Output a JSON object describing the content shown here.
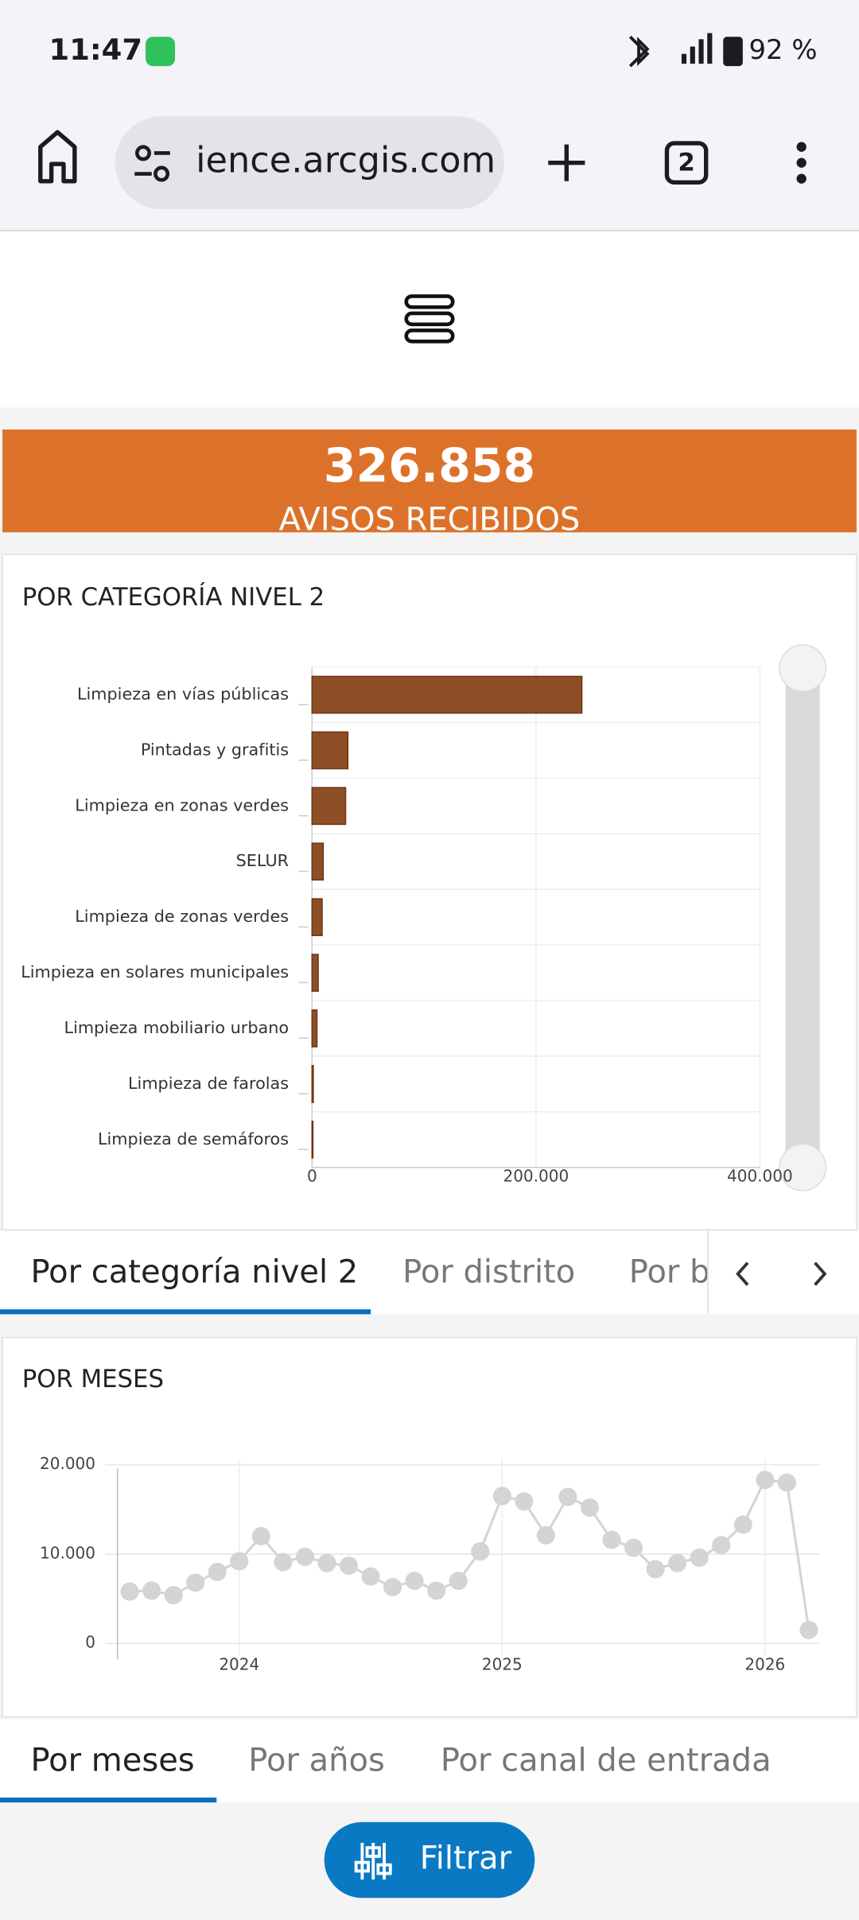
{
  "status_bar": {
    "time": "11:47",
    "battery": "92 %"
  },
  "browser": {
    "url": "ience.arcgis.com",
    "tab_count": "2"
  },
  "kpi": {
    "value": "326.858",
    "label": "AVISOS RECIBIDOS"
  },
  "tabs_top": [
    "Por categoría nivel 2",
    "Por distrito",
    "Por b"
  ],
  "tabs_bottom": [
    "Por meses",
    "Por años",
    "Por canal de entrada"
  ],
  "filter_button": "Filtrar",
  "chart_data": [
    {
      "type": "bar",
      "horizontal": true,
      "title": "POR CATEGORÍA NIVEL 2",
      "categories": [
        "Limpieza en vías públicas",
        "Pintadas y grafitis",
        "Limpieza en zonas verdes",
        "SELUR",
        "Limpieza de zonas verdes",
        "Limpieza en solares municipales",
        "Limpieza mobiliario urbano",
        "Limpieza de farolas",
        "Limpieza de semáforos"
      ],
      "values": [
        241000,
        32000,
        30000,
        10000,
        9000,
        5500,
        4400,
        1100,
        800
      ],
      "color": "#8f4f26",
      "xlim": [
        0,
        400000
      ],
      "xticks": [
        0,
        {
          "value": 200000,
          "label": "200.000"
        },
        {
          "value": 400000,
          "label": "400.000"
        }
      ],
      "grid": true
    },
    {
      "type": "line",
      "title": "POR MESES",
      "categories": [
        null,
        null,
        null,
        null,
        null,
        "2024",
        null,
        null,
        null,
        null,
        null,
        null,
        null,
        null,
        null,
        null,
        null,
        "2025",
        null,
        null,
        null,
        null,
        null,
        null,
        null,
        null,
        null,
        null,
        null,
        "2026",
        null,
        null
      ],
      "values": [
        5800,
        5900,
        5400,
        6800,
        8000,
        9200,
        12000,
        9100,
        9700,
        9000,
        8700,
        7500,
        6300,
        7000,
        5900,
        7000,
        10300,
        16500,
        15900,
        12100,
        16400,
        15200,
        11600,
        10700,
        8300,
        9000,
        9600,
        11000,
        13300,
        18300,
        18000,
        1500
      ],
      "color": "#d4d4d4",
      "ylim": [
        0,
        20000
      ],
      "yticks": [
        0,
        {
          "value": 10000,
          "label": "10.000"
        },
        {
          "value": 20000,
          "label": "20.000"
        }
      ],
      "grid": true
    }
  ]
}
